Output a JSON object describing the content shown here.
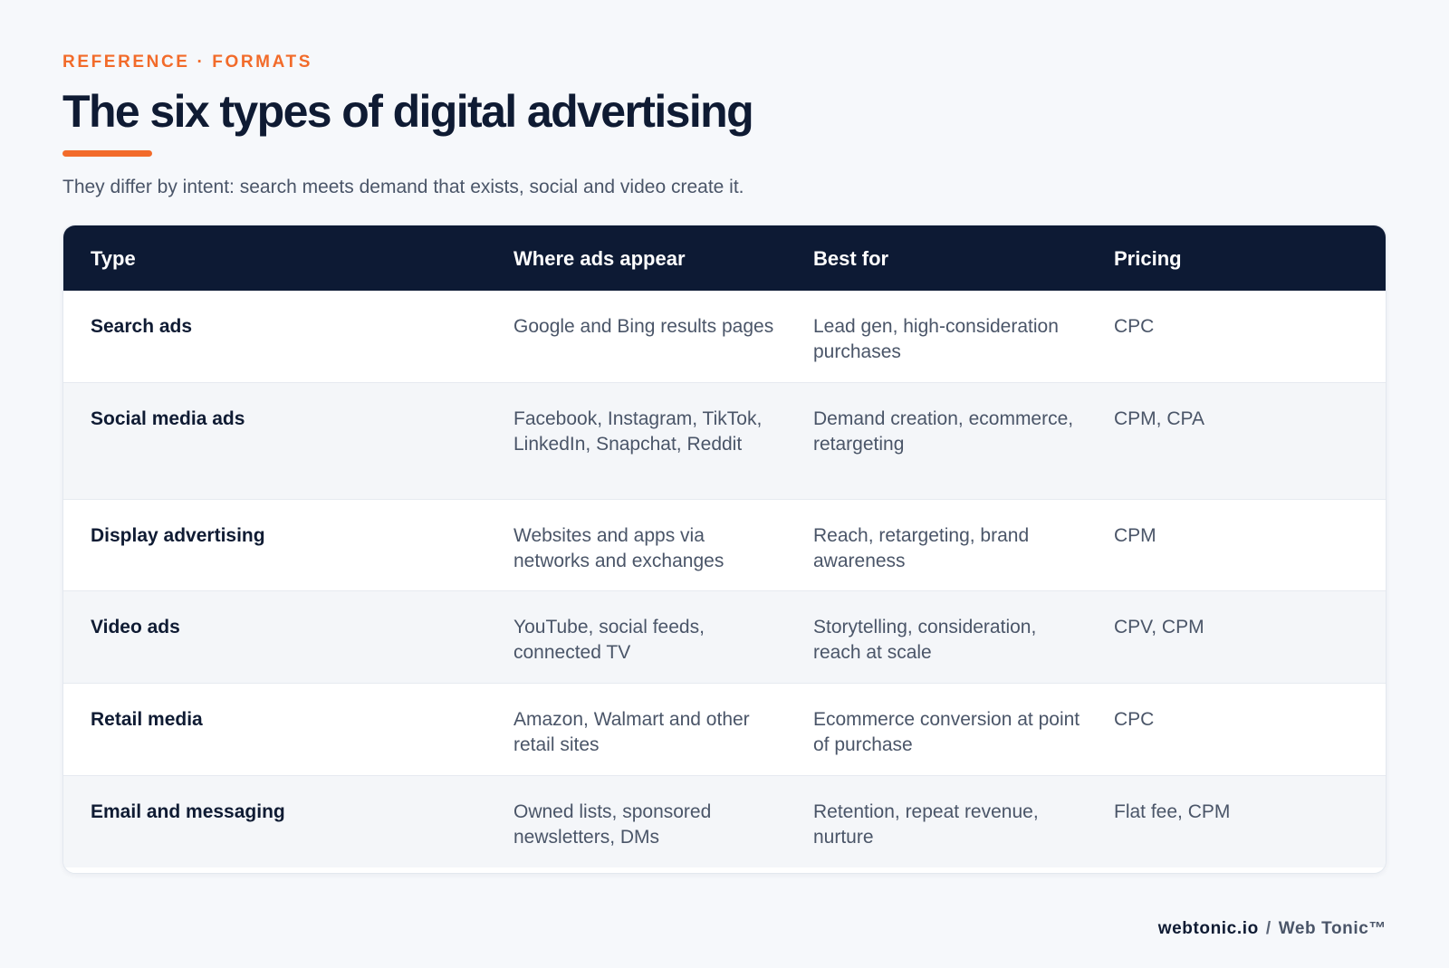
{
  "header": {
    "eyebrow": "REFERENCE · FORMATS",
    "title": "The six types of digital advertising",
    "subtitle": "They differ by intent: search meets demand that exists, social and video create it."
  },
  "table": {
    "columns": [
      "Type",
      "Where ads appear",
      "Best for",
      "Pricing"
    ],
    "rows": [
      {
        "type": "Search ads",
        "where": "Google and Bing results pages",
        "best_for": "Lead gen, high-consideration purchases",
        "pricing": "CPC"
      },
      {
        "type": "Social media ads",
        "where": "Facebook, Instagram, TikTok, LinkedIn, Snapchat, Reddit",
        "best_for": "Demand creation, ecommerce, retargeting",
        "pricing": "CPM, CPA"
      },
      {
        "type": "Display advertising",
        "where": "Websites and apps via networks and exchanges",
        "best_for": "Reach, retargeting, brand awareness",
        "pricing": "CPM"
      },
      {
        "type": "Video ads",
        "where": "YouTube, social feeds, connected TV",
        "best_for": "Storytelling, consideration, reach at scale",
        "pricing": "CPV, CPM"
      },
      {
        "type": "Retail media",
        "where": "Amazon, Walmart and other retail sites",
        "best_for": "Ecommerce conversion at point of purchase",
        "pricing": "CPC"
      },
      {
        "type": "Email and messaging",
        "where": "Owned lists, sponsored newsletters, DMs",
        "best_for": "Retention, repeat revenue, nurture",
        "pricing": "Flat fee, CPM"
      }
    ]
  },
  "footer": {
    "site": "webtonic.io",
    "separator": "/",
    "brand": "Web Tonic™"
  },
  "colors": {
    "accent": "#f26b2a",
    "header_bg": "#0d1a34",
    "text_dark": "#0f1b33",
    "text_muted": "#4a5568",
    "page_bg": "#f6f8fb"
  }
}
